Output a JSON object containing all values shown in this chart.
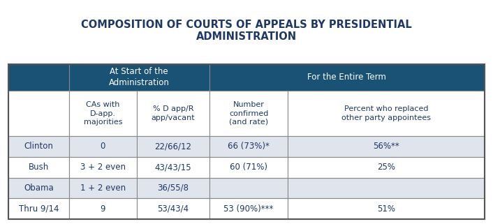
{
  "title": "COMPOSITION OF COURTS OF APPEALS BY PRESIDENTIAL\nADMINISTRATION",
  "title_color": "#1F3864",
  "header1_text": "At Start of the\nAdministration",
  "header2_text": "For the Entire Term",
  "header_bg": "#1A5276",
  "header_text_color": "#FFFFFF",
  "col_headers": [
    "CAs with\nD-app.\nmajorities",
    "% D app/R\napp/vacant",
    "Number\nconfirmed\n(and rate)",
    "Percent who replaced\nother party appointees"
  ],
  "row_labels": [
    "Clinton",
    "Bush",
    "Obama",
    "Thru 9/14"
  ],
  "table_data": [
    [
      "0",
      "22/66/12",
      "66 (73%)*",
      "56%**"
    ],
    [
      "3 + 2 even",
      "43/43/15",
      "60 (71%)",
      "25%"
    ],
    [
      "1 + 2 even",
      "36/55/8",
      "",
      ""
    ],
    [
      "9",
      "53/43/4",
      "53 (90%)***",
      "51%"
    ]
  ],
  "row_bg_light": "#E0E4ED",
  "row_bg_white": "#FFFFFF",
  "subheader_bg": "#FFFFFF",
  "border_color": "#888888",
  "text_color": "#1F3864",
  "figsize": [
    7.06,
    3.21
  ],
  "dpi": 100
}
